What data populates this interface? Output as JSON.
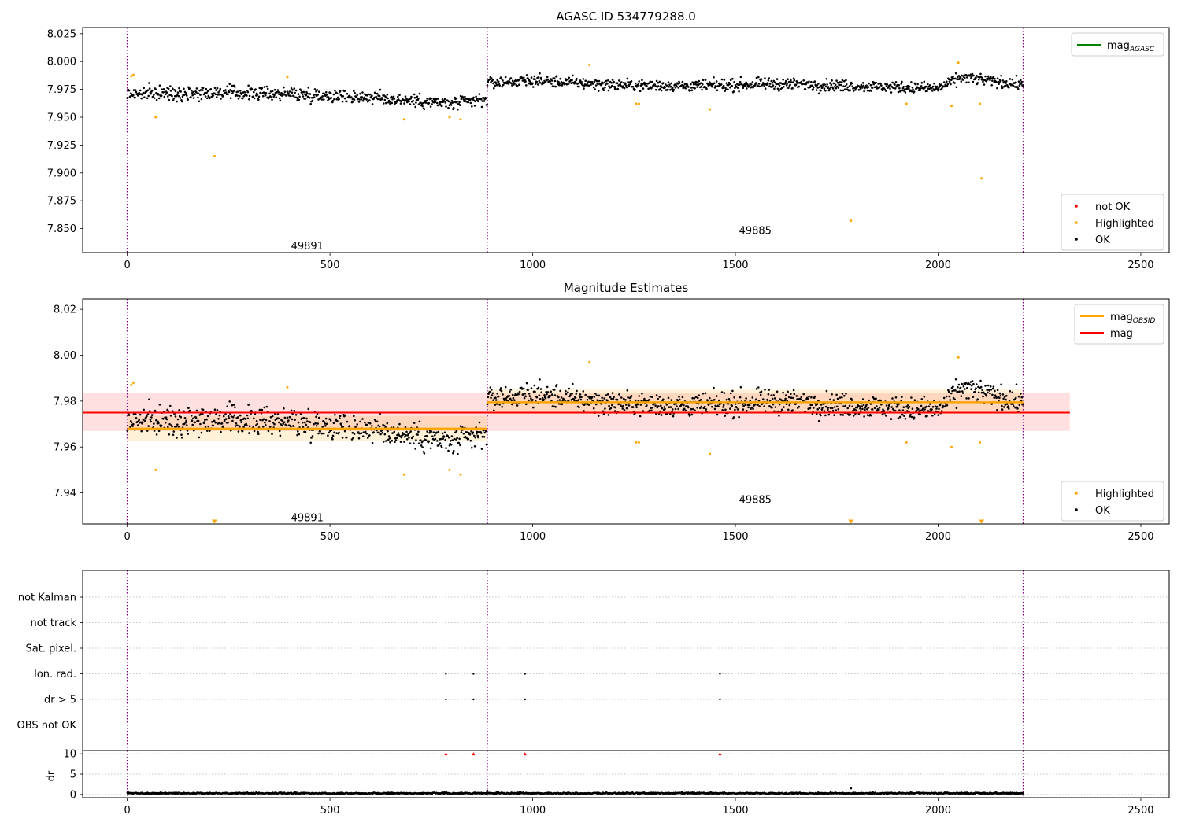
{
  "figure": {
    "xticks": [
      0,
      500,
      1000,
      1500,
      2000,
      2500
    ],
    "xlim": [
      -110,
      2570
    ],
    "obs_boundaries": [
      0,
      888,
      2210
    ],
    "obs_labels": [
      {
        "text": "49891",
        "x": 444
      },
      {
        "text": "49885",
        "x": 1549
      }
    ]
  },
  "chart_data": [
    {
      "type": "scatter",
      "title": "AGASC ID 534779288.0",
      "xlabel": "",
      "ylabel": "",
      "xlim": [
        -110,
        2570
      ],
      "ylim": [
        7.8285,
        8.0305
      ],
      "yticks": [
        7.85,
        7.875,
        7.9,
        7.925,
        7.95,
        7.975,
        8.0,
        8.025
      ],
      "ytick_labels": [
        "7.850",
        "7.875",
        "7.900",
        "7.925",
        "7.950",
        "7.975",
        "8.000",
        "8.025"
      ],
      "obs_label_y": [
        7.834,
        7.848
      ],
      "legend_top": {
        "position": "top-right",
        "entries": [
          {
            "label": "mag",
            "sub": "AGASC",
            "color": "#008000"
          }
        ]
      },
      "legend_bottom": {
        "position": "bottom-right",
        "entries": [
          {
            "label": "not OK",
            "color": "#ff0000"
          },
          {
            "label": "Highlighted",
            "color": "#ffa500"
          },
          {
            "label": "OK",
            "color": "#000000"
          }
        ]
      },
      "series": [
        {
          "name": "OK",
          "color": "#000000",
          "segments": [
            {
              "x_range": [
                0,
                888
              ],
              "trend": [
                [
                  0,
                  7.971
                ],
                [
                  200,
                  7.972
                ],
                [
                  400,
                  7.971
                ],
                [
                  600,
                  7.968
                ],
                [
                  800,
                  7.962
                ],
                [
                  888,
                  7.966
                ]
              ],
              "spread": 0.006
            },
            {
              "x_range": [
                888,
                2210
              ],
              "trend": [
                [
                  888,
                  7.981
                ],
                [
                  1000,
                  7.983
                ],
                [
                  1200,
                  7.979
                ],
                [
                  1400,
                  7.978
                ],
                [
                  1600,
                  7.98
                ],
                [
                  1800,
                  7.978
                ],
                [
                  2000,
                  7.976
                ],
                [
                  2060,
                  7.986
                ],
                [
                  2210,
                  7.979
                ]
              ],
              "spread": 0.005
            }
          ]
        },
        {
          "name": "Highlighted",
          "color": "#ffa500",
          "points": [
            [
              10,
              7.987
            ],
            [
              15,
              7.988
            ],
            [
              70,
              7.95
            ],
            [
              215,
              7.915
            ],
            [
              395,
              7.986
            ],
            [
              683,
              7.948
            ],
            [
              795,
              7.95
            ],
            [
              822,
              7.948
            ],
            [
              1140,
              7.997
            ],
            [
              1255,
              7.962
            ],
            [
              1262,
              7.962
            ],
            [
              1437,
              7.957
            ],
            [
              1785,
              7.857
            ],
            [
              1922,
              7.962
            ],
            [
              2033,
              7.96
            ],
            [
              2050,
              7.999
            ],
            [
              2103,
              7.962
            ],
            [
              2107,
              7.895
            ]
          ]
        },
        {
          "name": "not OK",
          "color": "#ff0000",
          "points": []
        }
      ]
    },
    {
      "type": "scatter",
      "title": "Magnitude Estimates",
      "xlabel": "",
      "ylabel": "",
      "xlim": [
        -110,
        2570
      ],
      "ylim": [
        7.9265,
        8.0245
      ],
      "yticks": [
        7.94,
        7.96,
        7.98,
        8.0,
        8.02
      ],
      "ytick_labels": [
        "7.94",
        "7.96",
        "7.98",
        "8.00",
        "8.02"
      ],
      "obs_label_y": [
        7.929,
        7.937
      ],
      "band": {
        "y_range": [
          7.967,
          7.9835
        ],
        "x_range": [
          -110,
          2325
        ],
        "color": "#ffcccc"
      },
      "mag_line": {
        "label": "mag",
        "value": 7.975,
        "color": "#ff0000"
      },
      "mag_obsid": [
        {
          "x_range": [
            0,
            888
          ],
          "value": 7.968,
          "band": [
            7.9625,
            7.9735
          ]
        },
        {
          "x_range": [
            888,
            2210
          ],
          "value": 7.9795,
          "band": [
            7.9745,
            7.985
          ]
        }
      ],
      "offscale_markers": [
        215,
        1785,
        2107
      ],
      "legend_top": {
        "position": "top-right",
        "entries": [
          {
            "label": "mag",
            "sub": "OBSID",
            "color": "#ffa500"
          },
          {
            "label": "mag",
            "color": "#ff0000"
          }
        ]
      },
      "legend_bottom": {
        "position": "bottom-right",
        "entries": [
          {
            "label": "Highlighted",
            "color": "#ffa500"
          },
          {
            "label": "OK",
            "color": "#000000"
          }
        ]
      }
    },
    {
      "type": "scatter",
      "title": "",
      "xlabel": "",
      "ylabel": "",
      "xlim": [
        -110,
        2570
      ],
      "flag_rows": [
        "not Kalman",
        "not track",
        "Sat. pixel.",
        "Ion. rad.",
        "dr > 5",
        "OBS not OK"
      ],
      "flag_points": [
        {
          "row": "Ion. rad.",
          "x": [
            786,
            854,
            981,
            1462
          ]
        },
        {
          "row": "dr > 5",
          "x": [
            786,
            854,
            981,
            1462
          ]
        }
      ]
    },
    {
      "type": "scatter",
      "title": "",
      "xlabel": "",
      "ylabel": "dr",
      "xlim": [
        -110,
        2570
      ],
      "ylim": [
        -0.8,
        10.8
      ],
      "yticks": [
        0,
        5,
        10
      ],
      "ytick_labels": [
        "0",
        "5",
        "10"
      ],
      "dr_typical": 0.3,
      "dr_outliers": [
        [
          1785,
          1.5
        ],
        [
          888,
          0.9
        ]
      ],
      "clipped_markers": {
        "value": 10,
        "x": [
          786,
          854,
          981,
          1462
        ],
        "color": "#ff0000"
      }
    }
  ]
}
